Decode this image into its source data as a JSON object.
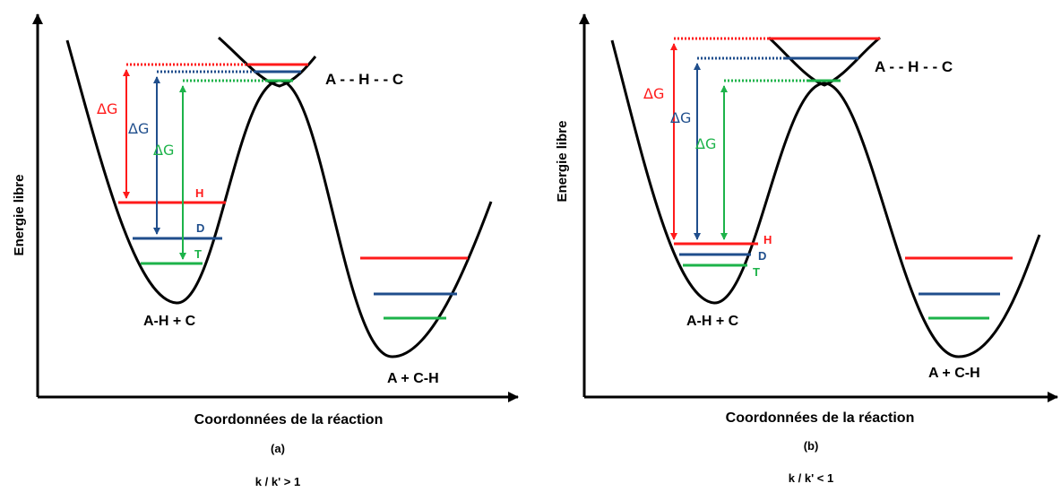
{
  "colors": {
    "axis": "#000000",
    "curve": "#000000",
    "H": "#ff1a1a",
    "D": "#1f4e8c",
    "T": "#1db34a"
  },
  "panels": [
    {
      "id": "a",
      "y_axis_label": "Energie libre",
      "x_axis_label": "Coordonnées de la réaction",
      "panel_label": "(a)",
      "ratio_label": "k / k' > 1",
      "reactant_label": "A-H + C",
      "product_label": "A + C-H",
      "transition_label": "A - - H - - C",
      "delta_g_labels": [
        "ΔG",
        "ΔG",
        "ΔG"
      ],
      "isotope_labels": [
        "H",
        "D",
        "T"
      ]
    },
    {
      "id": "b",
      "y_axis_label": "Energie libre",
      "x_axis_label": "Coordonnées de la réaction",
      "panel_label": "(b)",
      "ratio_label": "k / k' < 1",
      "reactant_label": "A-H + C",
      "product_label": "A + C-H",
      "transition_label": "A - - H - - C",
      "delta_g_labels": [
        "ΔG",
        "ΔG",
        "ΔG"
      ],
      "isotope_labels": [
        "H",
        "D",
        "T"
      ]
    }
  ]
}
